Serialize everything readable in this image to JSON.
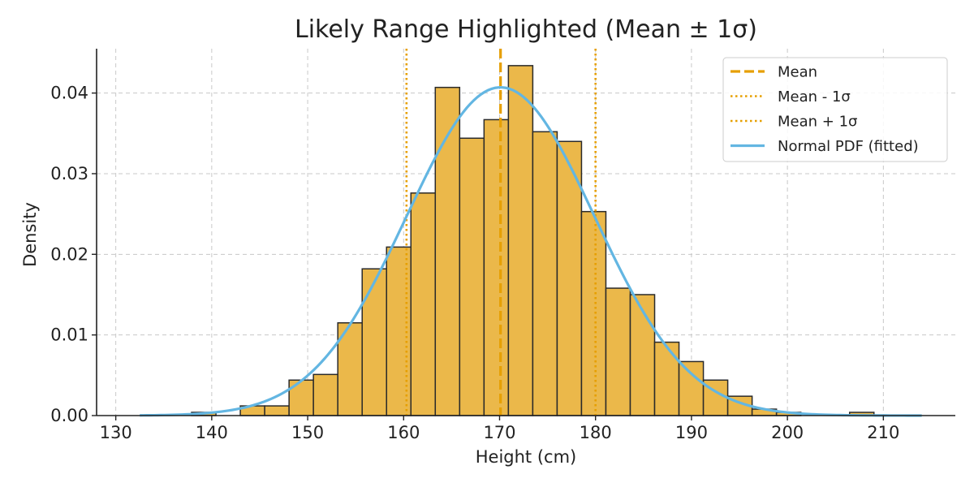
{
  "chart_data": {
    "type": "bar",
    "title": "Likely Range Highlighted (Mean ± 1σ)",
    "xlabel": "Height (cm)",
    "ylabel": "Density",
    "xlim": [
      128,
      217.5
    ],
    "ylim": [
      0,
      0.0455
    ],
    "xticks": [
      130,
      140,
      150,
      160,
      170,
      180,
      190,
      200,
      210
    ],
    "xtick_labels": [
      "130",
      "140",
      "150",
      "160",
      "170",
      "180",
      "190",
      "200",
      "210"
    ],
    "yticks": [
      0,
      0.01,
      0.02,
      0.03,
      0.04
    ],
    "ytick_labels": [
      "0.00",
      "0.01",
      "0.02",
      "0.03",
      "0.04"
    ],
    "grid": true,
    "legend_position": "top-right",
    "histogram": {
      "bin_start": 137.9,
      "bin_width": 2.54,
      "densities": [
        0.0004,
        0.0,
        0.0012,
        0.0012,
        0.0044,
        0.0051,
        0.0115,
        0.0182,
        0.0209,
        0.0276,
        0.0407,
        0.0344,
        0.0367,
        0.0434,
        0.0352,
        0.034,
        0.0253,
        0.0158,
        0.015,
        0.0091,
        0.0067,
        0.0044,
        0.0024,
        0.0008,
        0.0004,
        0.0,
        0.0,
        0.0004
      ],
      "color": "#ebb84a"
    },
    "lines": [
      {
        "name": "Mean",
        "x": 170.1,
        "style": "dashed",
        "color": "#e69f00"
      },
      {
        "name": "Mean - 1σ",
        "x": 160.3,
        "style": "dotted",
        "color": "#e69f00"
      },
      {
        "name": "Mean + 1σ",
        "x": 180.0,
        "style": "dotted",
        "color": "#e69f00"
      }
    ],
    "normal_pdf": {
      "name": "Normal PDF (fitted)",
      "mean": 170.1,
      "std": 9.8,
      "x_range": [
        132.5,
        214
      ],
      "color": "#63b6e2"
    }
  }
}
